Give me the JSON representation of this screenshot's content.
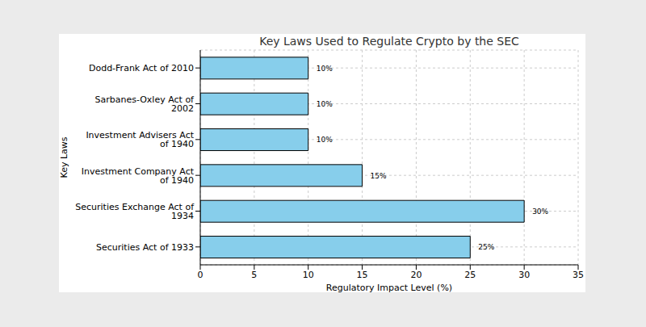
{
  "chart_data": {
    "type": "bar",
    "title": "Key Laws Used to Regulate Crypto by the SEC",
    "x_label": "Regulatory Impact Level (%)",
    "y_label": "Key Laws",
    "orientation": "horizontal",
    "categories": [
      "Dodd-Frank Act of 2010",
      "Sarbanes-Oxley Act of 2002",
      "Investment Advisers Act of 1940",
      "Investment Company Act of 1940",
      "Securities Exchange Act of 1934",
      "Securities Act of 1933"
    ],
    "values": [
      10,
      10,
      10,
      15,
      30,
      25
    ],
    "value_labels": [
      "10%",
      "10%",
      "10%",
      "15%",
      "30%",
      "25%"
    ],
    "data_labels": true,
    "color": "#87ceeb",
    "xlim": [
      0,
      35
    ],
    "xticks": [
      0,
      5,
      10,
      15,
      20,
      25,
      30,
      35
    ],
    "grid": true
  }
}
